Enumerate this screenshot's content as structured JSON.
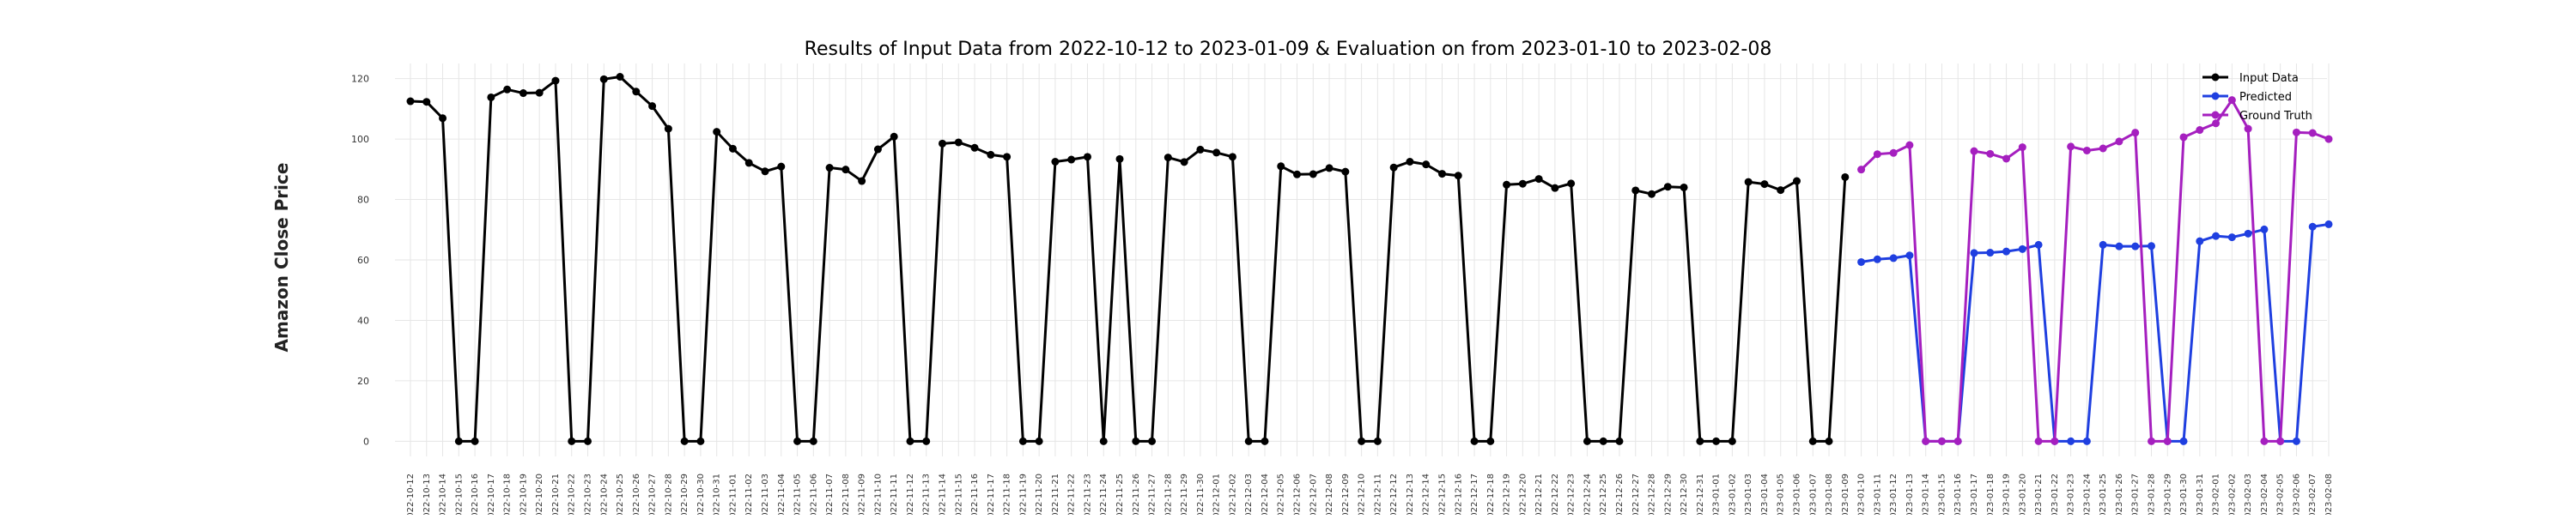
{
  "chart_data": {
    "type": "line",
    "title": "Results of Input Data from 2022-10-12 to 2023-01-09 & Evaluation on from 2023-01-10 to 2023-02-08",
    "xlabel": "",
    "ylabel": "Amazon Close Price",
    "ylim": [
      -5,
      125
    ],
    "yticks": [
      0,
      20,
      40,
      60,
      80,
      100,
      120
    ],
    "grid": true,
    "legend_position": "top-right",
    "x": [
      "2022-10-12",
      "2022-10-13",
      "2022-10-14",
      "2022-10-15",
      "2022-10-16",
      "2022-10-17",
      "2022-10-18",
      "2022-10-19",
      "2022-10-20",
      "2022-10-21",
      "2022-10-22",
      "2022-10-23",
      "2022-10-24",
      "2022-10-25",
      "2022-10-26",
      "2022-10-27",
      "2022-10-28",
      "2022-10-29",
      "2022-10-30",
      "2022-10-31",
      "2022-11-01",
      "2022-11-02",
      "2022-11-03",
      "2022-11-04",
      "2022-11-05",
      "2022-11-06",
      "2022-11-07",
      "2022-11-08",
      "2022-11-09",
      "2022-11-10",
      "2022-11-11",
      "2022-11-12",
      "2022-11-13",
      "2022-11-14",
      "2022-11-15",
      "2022-11-16",
      "2022-11-17",
      "2022-11-18",
      "2022-11-19",
      "2022-11-20",
      "2022-11-21",
      "2022-11-22",
      "2022-11-23",
      "2022-11-24",
      "2022-11-25",
      "2022-11-26",
      "2022-11-27",
      "2022-11-28",
      "2022-11-29",
      "2022-11-30",
      "2022-12-01",
      "2022-12-02",
      "2022-12-03",
      "2022-12-04",
      "2022-12-05",
      "2022-12-06",
      "2022-12-07",
      "2022-12-08",
      "2022-12-09",
      "2022-12-10",
      "2022-12-11",
      "2022-12-12",
      "2022-12-13",
      "2022-12-14",
      "2022-12-15",
      "2022-12-16",
      "2022-12-17",
      "2022-12-18",
      "2022-12-19",
      "2022-12-20",
      "2022-12-21",
      "2022-12-22",
      "2022-12-23",
      "2022-12-24",
      "2022-12-25",
      "2022-12-26",
      "2022-12-27",
      "2022-12-28",
      "2022-12-29",
      "2022-12-30",
      "2022-12-31",
      "2023-01-01",
      "2023-01-02",
      "2023-01-03",
      "2023-01-04",
      "2023-01-05",
      "2023-01-06",
      "2023-01-07",
      "2023-01-08",
      "2023-01-09",
      "2023-01-10",
      "2023-01-11",
      "2023-01-12",
      "2023-01-13",
      "2023-01-14",
      "2023-01-15",
      "2023-01-16",
      "2023-01-17",
      "2023-01-18",
      "2023-01-19",
      "2023-01-20",
      "2023-01-21",
      "2023-01-22",
      "2023-01-23",
      "2023-01-24",
      "2023-01-25",
      "2023-01-26",
      "2023-01-27",
      "2023-01-28",
      "2023-01-29",
      "2023-01-30",
      "2023-01-31",
      "2023-02-01",
      "2023-02-02",
      "2023-02-03",
      "2023-02-04",
      "2023-02-05",
      "2023-02-06",
      "2023-02-07",
      "2023-02-08"
    ],
    "series": [
      {
        "name": "Input Data",
        "color": "#000000",
        "x": [
          "2022-10-12",
          "2022-10-13",
          "2022-10-14",
          "2022-10-15",
          "2022-10-16",
          "2022-10-17",
          "2022-10-18",
          "2022-10-19",
          "2022-10-20",
          "2022-10-21",
          "2022-10-22",
          "2022-10-23",
          "2022-10-24",
          "2022-10-25",
          "2022-10-26",
          "2022-10-27",
          "2022-10-28",
          "2022-10-29",
          "2022-10-30",
          "2022-10-31",
          "2022-11-01",
          "2022-11-02",
          "2022-11-03",
          "2022-11-04",
          "2022-11-05",
          "2022-11-06",
          "2022-11-07",
          "2022-11-08",
          "2022-11-09",
          "2022-11-10",
          "2022-11-11",
          "2022-11-12",
          "2022-11-13",
          "2022-11-14",
          "2022-11-15",
          "2022-11-16",
          "2022-11-17",
          "2022-11-18",
          "2022-11-19",
          "2022-11-20",
          "2022-11-21",
          "2022-11-22",
          "2022-11-23",
          "2022-11-24",
          "2022-11-25",
          "2022-11-26",
          "2022-11-27",
          "2022-11-28",
          "2022-11-29",
          "2022-11-30",
          "2022-12-01",
          "2022-12-02",
          "2022-12-03",
          "2022-12-04",
          "2022-12-05",
          "2022-12-06",
          "2022-12-07",
          "2022-12-08",
          "2022-12-09",
          "2022-12-10",
          "2022-12-11",
          "2022-12-12",
          "2022-12-13",
          "2022-12-14",
          "2022-12-15",
          "2022-12-16",
          "2022-12-17",
          "2022-12-18",
          "2022-12-19",
          "2022-12-20",
          "2022-12-21",
          "2022-12-22",
          "2022-12-23",
          "2022-12-24",
          "2022-12-25",
          "2022-12-26",
          "2022-12-27",
          "2022-12-28",
          "2022-12-29",
          "2022-12-30",
          "2022-12-31",
          "2023-01-01",
          "2023-01-02",
          "2023-01-03",
          "2023-01-04",
          "2023-01-05",
          "2023-01-06",
          "2023-01-07",
          "2023-01-08",
          "2023-01-09"
        ],
        "values": [
          112.5,
          112.3,
          106.9,
          0,
          0,
          113.8,
          116.4,
          115.2,
          115.3,
          119.3,
          0,
          0,
          119.8,
          120.6,
          115.7,
          110.9,
          103.4,
          0,
          0,
          102.4,
          96.8,
          92.1,
          89.3,
          90.9,
          0,
          0,
          90.5,
          89.9,
          86.1,
          96.6,
          100.8,
          0,
          0,
          98.5,
          98.9,
          97.1,
          94.8,
          94.1,
          0,
          0,
          92.5,
          93.2,
          94.1,
          0,
          93.4,
          0,
          0,
          93.9,
          92.4,
          96.5,
          95.5,
          94.1,
          0,
          0,
          91.0,
          88.3,
          88.4,
          90.4,
          89.2,
          0,
          0,
          90.6,
          92.5,
          91.6,
          88.5,
          87.9,
          0,
          0,
          84.9,
          85.2,
          86.8,
          83.8,
          85.3,
          0,
          0,
          0,
          83.0,
          81.8,
          84.2,
          84.0,
          0,
          0,
          0,
          85.8,
          85.1,
          83.1,
          86.1,
          0,
          0,
          87.4
        ]
      },
      {
        "name": "Predicted",
        "color": "#1f3fe0",
        "x": [
          "2023-01-10",
          "2023-01-11",
          "2023-01-12",
          "2023-01-13",
          "2023-01-14",
          "2023-01-15",
          "2023-01-16",
          "2023-01-17",
          "2023-01-18",
          "2023-01-19",
          "2023-01-20",
          "2023-01-21",
          "2023-01-22",
          "2023-01-23",
          "2023-01-24",
          "2023-01-25",
          "2023-01-26",
          "2023-01-27",
          "2023-01-28",
          "2023-01-29",
          "2023-01-30",
          "2023-01-31",
          "2023-02-01",
          "2023-02-02",
          "2023-02-03",
          "2023-02-04",
          "2023-02-05",
          "2023-02-06",
          "2023-02-07",
          "2023-02-08"
        ],
        "values": [
          59.3,
          60.2,
          60.6,
          61.5,
          0,
          0,
          0,
          62.3,
          62.4,
          62.8,
          63.6,
          65.0,
          0,
          0,
          0,
          65.0,
          64.5,
          64.5,
          64.6,
          0,
          0,
          66.2,
          67.9,
          67.5,
          68.7,
          70.1,
          0,
          0,
          71.0,
          71.8
        ]
      },
      {
        "name": "Ground Truth",
        "color": "#a51fbf",
        "x": [
          "2023-01-10",
          "2023-01-11",
          "2023-01-12",
          "2023-01-13",
          "2023-01-14",
          "2023-01-15",
          "2023-01-16",
          "2023-01-17",
          "2023-01-18",
          "2023-01-19",
          "2023-01-20",
          "2023-01-21",
          "2023-01-22",
          "2023-01-23",
          "2023-01-24",
          "2023-01-25",
          "2023-01-26",
          "2023-01-27",
          "2023-01-28",
          "2023-01-29",
          "2023-01-30",
          "2023-01-31",
          "2023-02-01",
          "2023-02-02",
          "2023-02-03",
          "2023-02-04",
          "2023-02-05",
          "2023-02-06",
          "2023-02-07",
          "2023-02-08"
        ],
        "values": [
          89.9,
          95.0,
          95.4,
          98.0,
          0,
          0,
          0,
          96.0,
          95.1,
          93.5,
          97.3,
          0,
          0,
          97.5,
          96.2,
          96.9,
          99.2,
          102.1,
          0,
          0,
          100.6,
          103.0,
          105.2,
          112.9,
          103.4,
          0,
          0,
          102.2,
          102.0,
          100.0
        ]
      }
    ]
  }
}
